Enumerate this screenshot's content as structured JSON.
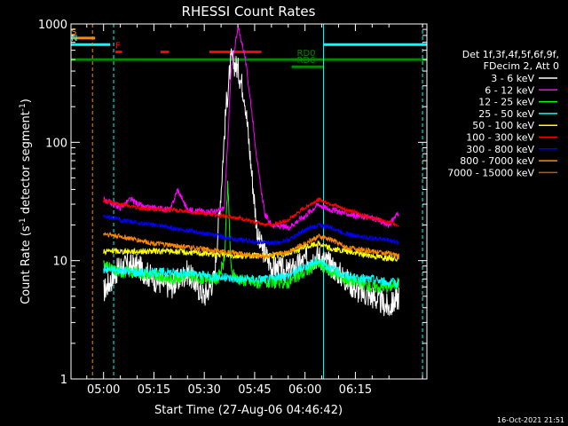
{
  "chart_data": {
    "type": "line",
    "title": "RHESSI Count Rates",
    "xlabel": "Start Time (27-Aug-06 04:46:42)",
    "ylabel_main": "Count Rate (s",
    "ylabel_sup": "-1",
    "ylabel_tail": " detector segment",
    "ylabel_sup2": "-1",
    "ylabel_close": ")",
    "yscale": "log",
    "ylim": [
      1,
      1000
    ],
    "xlim_minutes": [
      -9.7,
      96.3
    ],
    "x_ticks": [
      {
        "label": "05:00",
        "minute": 0
      },
      {
        "label": "05:15",
        "minute": 15
      },
      {
        "label": "05:30",
        "minute": 30
      },
      {
        "label": "05:45",
        "minute": 45
      },
      {
        "label": "06:00",
        "minute": 60
      },
      {
        "label": "06:15",
        "minute": 75
      }
    ],
    "y_ticks": [
      {
        "label": "1",
        "value": 1
      },
      {
        "label": "10",
        "value": 10
      },
      {
        "label": "100",
        "value": 100
      },
      {
        "label": "1000",
        "value": 1000
      }
    ],
    "legend_header": [
      "Det 1f,3f,4f,5f,6f,9f,",
      "FDecim 2, Att 0"
    ],
    "legend_position": "right",
    "series": [
      {
        "name": "3 - 6 keV",
        "color": "#ffffff",
        "x": [
          0,
          5,
          10,
          15,
          20,
          25,
          30,
          33,
          35,
          36.5,
          38,
          40,
          42,
          44,
          46,
          50,
          55,
          60,
          64,
          68,
          72,
          76,
          80,
          85,
          88
        ],
        "y": [
          5.5,
          9,
          9,
          7,
          6,
          8,
          5,
          7,
          40,
          200,
          500,
          420,
          250,
          60,
          15,
          9,
          8,
          10,
          11,
          9,
          7,
          5.5,
          5,
          4,
          5
        ]
      },
      {
        "name": "6 - 12 keV",
        "color": "#ff00ff",
        "x": [
          0,
          5,
          8,
          12,
          15,
          20,
          22,
          25,
          30,
          34,
          36,
          38,
          40,
          42,
          44,
          46,
          48,
          50,
          55,
          60,
          64,
          66,
          70,
          75,
          80,
          85,
          88
        ],
        "y": [
          33,
          28,
          33,
          28,
          28,
          27,
          40,
          27,
          26,
          26,
          28,
          400,
          950,
          560,
          200,
          60,
          25,
          20,
          19,
          24,
          30,
          28,
          26,
          24,
          23,
          20,
          26
        ]
      },
      {
        "name": "12 - 25 keV",
        "color": "#00ff00",
        "x": [
          0,
          5,
          10,
          15,
          20,
          25,
          30,
          34,
          36,
          37,
          38,
          40,
          45,
          50,
          55,
          60,
          64,
          68,
          72,
          76,
          80,
          85,
          88
        ],
        "y": [
          9,
          8,
          8,
          7.5,
          7,
          7.5,
          7,
          7,
          10,
          45,
          8,
          7,
          6.5,
          6.5,
          6.5,
          8,
          9.5,
          8,
          7,
          6.5,
          6,
          6,
          6.5
        ]
      },
      {
        "name": "25 - 50 keV",
        "color": "#00ffff",
        "x": [
          0,
          10,
          20,
          30,
          40,
          50,
          55,
          60,
          64,
          68,
          72,
          76,
          80,
          85,
          88
        ],
        "y": [
          8.5,
          8,
          8,
          7.5,
          7,
          7,
          7.5,
          9,
          10,
          8.5,
          7.5,
          7,
          7,
          6.5,
          6.5
        ]
      },
      {
        "name": "50 - 100 keV",
        "color": "#ffff00",
        "x": [
          0,
          10,
          20,
          30,
          40,
          50,
          55,
          60,
          64,
          68,
          72,
          76,
          80,
          85,
          88
        ],
        "y": [
          12,
          12,
          12,
          11.5,
          11,
          11,
          11.5,
          13,
          14,
          12.5,
          12,
          11.5,
          11,
          10.5,
          10.5
        ]
      },
      {
        "name": "100 - 300 keV",
        "color": "#ff0000",
        "x": [
          0,
          5,
          10,
          15,
          20,
          25,
          30,
          35,
          40,
          45,
          50,
          55,
          60,
          64,
          68,
          72,
          76,
          80,
          85,
          88
        ],
        "y": [
          32,
          30,
          28,
          27,
          27,
          26,
          25,
          24,
          23,
          21,
          20,
          22,
          28,
          33,
          30,
          27,
          25,
          23,
          21,
          20
        ]
      },
      {
        "name": "300 - 800 keV",
        "color": "#0000ff",
        "x": [
          0,
          5,
          10,
          15,
          20,
          25,
          30,
          35,
          40,
          45,
          50,
          55,
          60,
          64,
          68,
          72,
          76,
          80,
          85,
          88
        ],
        "y": [
          24,
          22,
          21,
          20,
          19,
          18,
          17,
          16,
          15,
          14.5,
          14,
          15,
          18,
          20,
          19,
          17,
          16,
          15.5,
          15,
          14
        ]
      },
      {
        "name": "800 - 7000 keV",
        "color": "#ff8800",
        "x": [
          0,
          5,
          10,
          15,
          20,
          25,
          30,
          35,
          40,
          45,
          50,
          55,
          60,
          64,
          68,
          72,
          76,
          80,
          85,
          88
        ],
        "y": [
          17,
          16,
          15,
          14,
          13.5,
          13,
          12.5,
          12,
          11.5,
          11,
          11,
          12,
          14,
          16,
          15,
          13,
          12.5,
          12,
          11.5,
          11
        ]
      },
      {
        "name": "7000 - 15000 keV",
        "color": "#996633",
        "x": [],
        "y": []
      }
    ],
    "flag_bars": [
      {
        "label": "S",
        "color": "#ff8800",
        "start": -9.7,
        "end": -2.5,
        "y_value": 760
      },
      {
        "label": "N",
        "color": "#00ffff",
        "start": -9.7,
        "end": 2,
        "y_value": 670
      },
      {
        "label": "F",
        "color": "#ff0000",
        "start": 3.5,
        "end": 5.5,
        "y_value": 580
      },
      {
        "label": "",
        "color": "#ff0000",
        "start": 17,
        "end": 19.5,
        "y_value": 580
      },
      {
        "label": "",
        "color": "#ff0000",
        "start": 31.5,
        "end": 47,
        "y_value": 580
      },
      {
        "label": "",
        "color": "#00ffff",
        "start": 65.5,
        "end": 96.3,
        "y_value": 670
      },
      {
        "label": "",
        "color": "#008800",
        "start": -9.7,
        "end": 96.3,
        "y_value": 500
      },
      {
        "label": "RD0",
        "color": "#008800",
        "start": 56,
        "end": 60,
        "y_value": 500
      },
      {
        "label": "RD6",
        "color": "#008800",
        "start": 56,
        "end": 65.5,
        "y_value": 435
      }
    ],
    "vertical_lines": [
      {
        "minute": -9.7,
        "color": "#00ffff",
        "style": "solid"
      },
      {
        "minute": -3.3,
        "color": "#ff8800",
        "style": "dashed"
      },
      {
        "minute": 3.0,
        "color": "#00ffff",
        "style": "dashed"
      },
      {
        "minute": 65.5,
        "color": "#00ffff",
        "style": "solid"
      },
      {
        "minute": 95.0,
        "color": "#00ffff",
        "style": "dashed"
      }
    ],
    "timestamp": "16-Oct-2021 21:51"
  }
}
